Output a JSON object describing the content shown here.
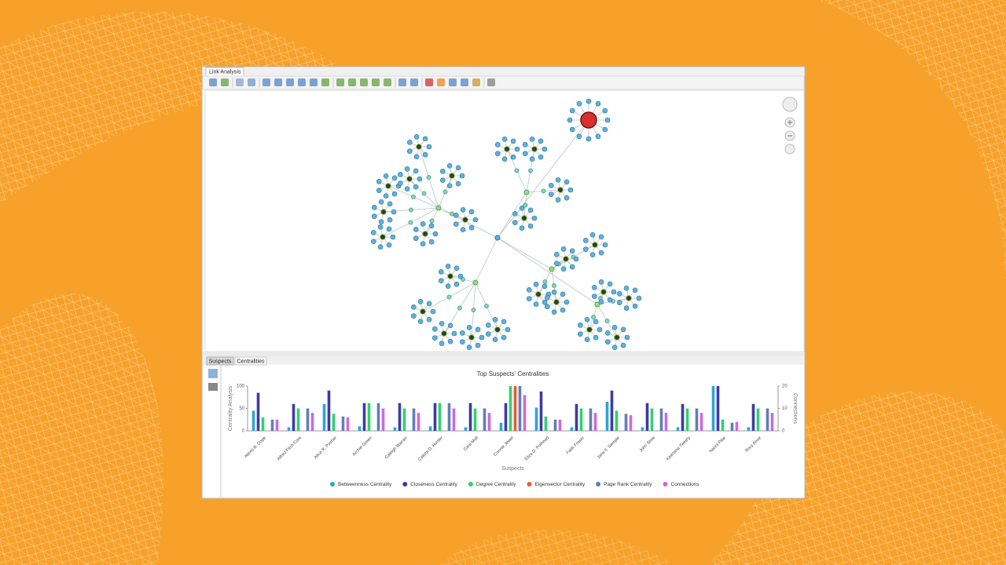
{
  "window": {
    "tab": "Link Analysis"
  },
  "bottom_tabs": [
    "Suspects",
    "Centralities"
  ],
  "chart_data": {
    "type": "bar",
    "title": "Top Suspects' Centralities",
    "x_label": "Suspects",
    "y_label": "Centrality Analysis",
    "y2_label": "Connections",
    "categories": [
      "Alexis B. Dope",
      "Alfred Fitch Cork",
      "Alice R. Pusher",
      "Archie Green",
      "Caleigh Warren",
      "Calista D. Hunter",
      "Cara Mull",
      "Connie Jewel",
      "Eliza D. Pothead",
      "Faith Fraser",
      "Jane F. Sample",
      "John Stow",
      "Keenana Tweety",
      "Nanni Pilar",
      "Rory Anne"
    ],
    "series": [
      {
        "name": "Betweenness Centrality",
        "color": "#2ea3dc",
        "values": [
          45,
          8,
          60,
          10,
          8,
          10,
          8,
          18,
          52,
          8,
          65,
          8,
          8,
          100,
          8
        ]
      },
      {
        "name": "Closeness Centrality",
        "color": "#3d3aa6",
        "values": [
          85,
          60,
          90,
          62,
          62,
          62,
          62,
          62,
          88,
          60,
          90,
          62,
          60,
          100,
          60
        ]
      },
      {
        "name": "Degree Centrality",
        "color": "#2fd26e",
        "values": [
          30,
          50,
          38,
          62,
          50,
          62,
          50,
          100,
          32,
          50,
          45,
          50,
          50,
          25,
          50
        ]
      },
      {
        "name": "Eigenvector Centrality",
        "color": "#ec5a2c",
        "values": [
          0,
          0,
          0,
          0,
          0,
          0,
          0,
          100,
          0,
          0,
          0,
          0,
          0,
          0,
          0
        ]
      },
      {
        "name": "Page Rank Centrality",
        "color": "#5f7fb6",
        "values": [
          25,
          50,
          32,
          62,
          50,
          62,
          50,
          100,
          25,
          50,
          38,
          50,
          50,
          18,
          50
        ]
      },
      {
        "name": "Connections",
        "color": "#cf67e0",
        "axis": "y2",
        "values": [
          5,
          8,
          6,
          10,
          8,
          10,
          8,
          16,
          5,
          8,
          7,
          8,
          8,
          4,
          8
        ]
      }
    ],
    "ylim": [
      0,
      100
    ],
    "yticks": [
      0,
      50,
      100
    ],
    "y2lim": [
      0,
      20
    ],
    "y2ticks": [
      0,
      10,
      20
    ],
    "legend": "bottom"
  }
}
